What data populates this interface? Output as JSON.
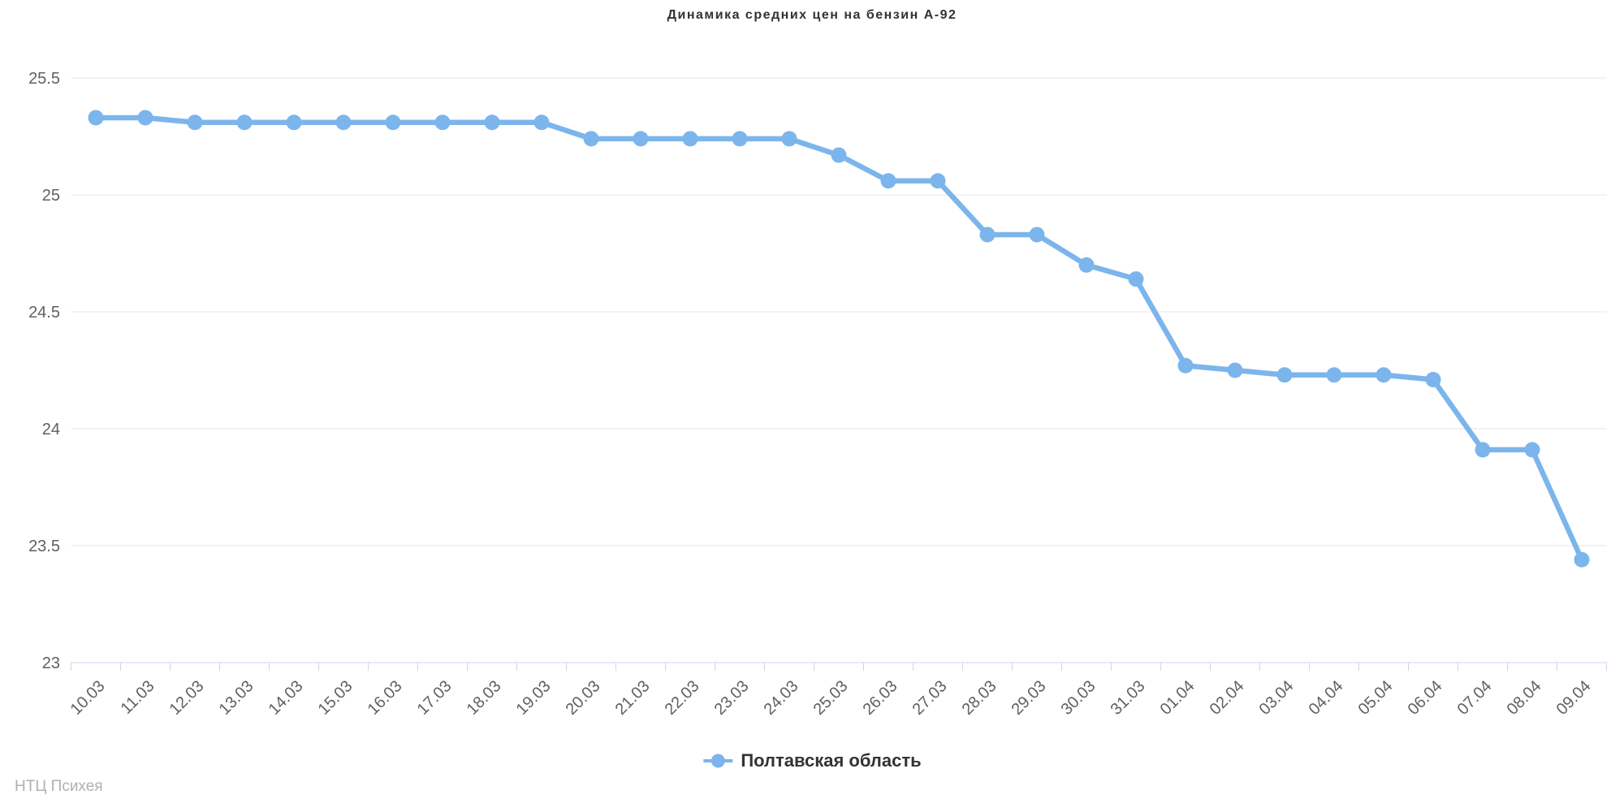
{
  "title": "Динамика средних цен на бензин А-92",
  "legend": {
    "label": "Полтавская область"
  },
  "credits": "НТЦ Психея",
  "colors": {
    "series": "#7cb5ec",
    "grid": "#e6e6e6",
    "axis": "#ccd6eb",
    "tick_label": "#606060",
    "title_text": "#333333",
    "credits_text": "#b0b0b0"
  },
  "chart_data": {
    "type": "line",
    "title": "Динамика средних цен на бензин А-92",
    "xlabel": "",
    "ylabel": "",
    "grid": true,
    "legend_position": "bottom-center",
    "ylim": [
      23,
      25.5
    ],
    "yticks": [
      25.5,
      25,
      24.5,
      24,
      23.5,
      23
    ],
    "categories": [
      "10.03",
      "11.03",
      "12.03",
      "13.03",
      "14.03",
      "15.03",
      "16.03",
      "17.03",
      "18.03",
      "19.03",
      "20.03",
      "21.03",
      "22.03",
      "23.03",
      "24.03",
      "25.03",
      "26.03",
      "27.03",
      "28.03",
      "29.03",
      "30.03",
      "31.03",
      "01.04",
      "02.04",
      "03.04",
      "04.04",
      "05.04",
      "06.04",
      "07.04",
      "08.04",
      "09.04"
    ],
    "series": [
      {
        "name": "Полтавская область",
        "color": "#7cb5ec",
        "values": [
          25.33,
          25.33,
          25.31,
          25.31,
          25.31,
          25.31,
          25.31,
          25.31,
          25.31,
          25.31,
          25.24,
          25.24,
          25.24,
          25.24,
          25.24,
          25.17,
          25.06,
          25.06,
          24.83,
          24.83,
          24.7,
          24.64,
          24.27,
          24.25,
          24.23,
          24.23,
          24.23,
          24.21,
          23.91,
          23.91,
          23.44
        ]
      }
    ]
  }
}
